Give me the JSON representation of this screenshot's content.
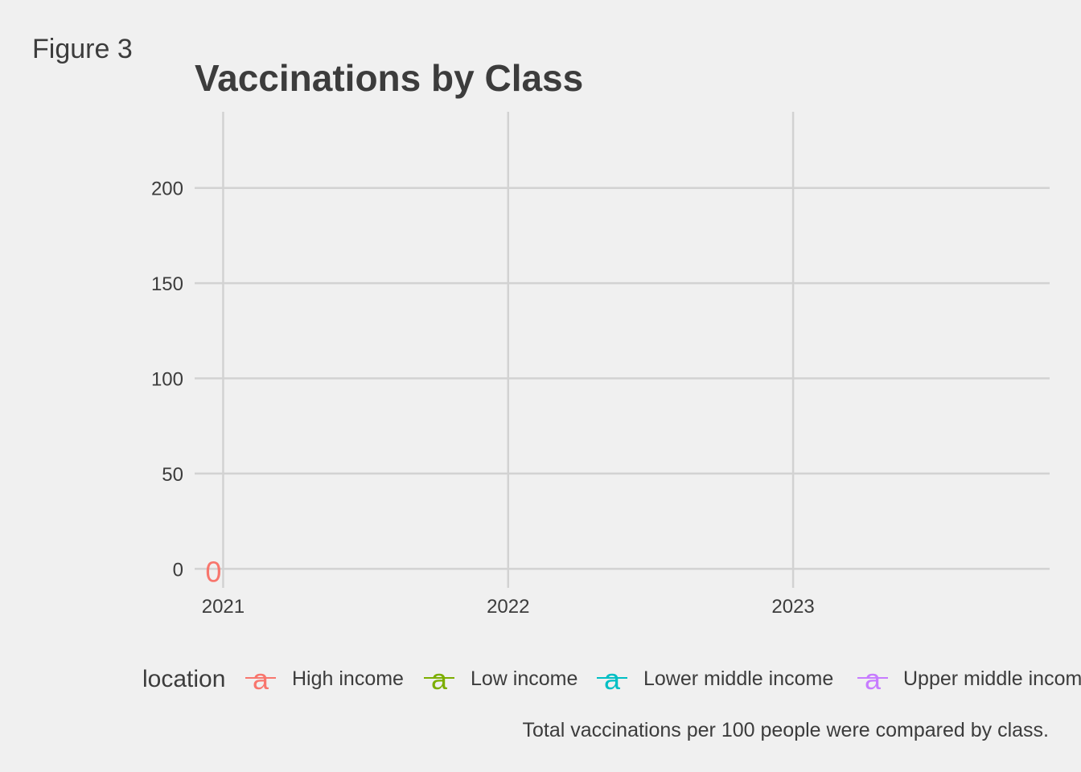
{
  "figure_label": "Figure 3",
  "colors": {
    "background": "#f0f0f0",
    "grid": "#d2d2d2",
    "text": "#3c3c3c",
    "series": [
      "#f8766d",
      "#7cae00",
      "#00bfc4",
      "#c77cff"
    ]
  },
  "chart_data": {
    "type": "line",
    "title": "Vaccinations by Class",
    "xlabel": "",
    "ylabel": "",
    "caption": "Total vaccinations per 100 people were compared by class.",
    "x_ticks": [
      "2021",
      "2022",
      "2023"
    ],
    "y_ticks": [
      0,
      50,
      100,
      150,
      200
    ],
    "xlim": [
      2020.9,
      2023.9
    ],
    "ylim": [
      -10,
      240
    ],
    "grid": true,
    "legend": {
      "title": "location",
      "position": "bottom",
      "key_glyph": "a",
      "entries": [
        "High income",
        "Low income",
        "Lower middle income",
        "Upper middle income"
      ]
    },
    "series": [
      {
        "name": "High income",
        "points": [
          {
            "x": 2021.0,
            "y": 0,
            "label": "0"
          }
        ]
      },
      {
        "name": "Low income",
        "points": []
      },
      {
        "name": "Lower middle income",
        "points": []
      },
      {
        "name": "Upper middle income",
        "points": []
      }
    ]
  }
}
